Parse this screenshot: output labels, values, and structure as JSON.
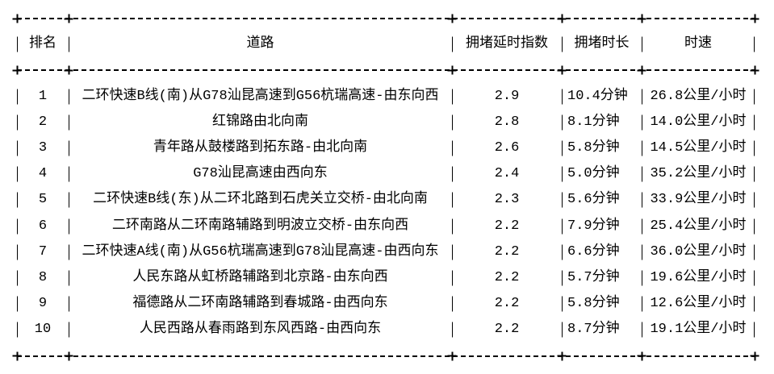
{
  "chart_data": {
    "type": "table",
    "title": "",
    "columns": [
      "排名",
      "道路",
      "拥堵延时指数",
      "拥堵时长",
      "时速"
    ],
    "rows": [
      [
        "1",
        "二环快速B线(南)从G78汕昆高速到G56杭瑞高速-由东向西",
        "2.9",
        "10.4分钟",
        "26.8公里/小时"
      ],
      [
        "2",
        "红锦路由北向南",
        "2.8",
        "8.1分钟",
        "14.0公里/小时"
      ],
      [
        "3",
        "青年路从鼓楼路到拓东路-由北向南",
        "2.6",
        "5.8分钟",
        "14.5公里/小时"
      ],
      [
        "4",
        "G78汕昆高速由西向东",
        "2.4",
        "5.0分钟",
        "35.2公里/小时"
      ],
      [
        "5",
        "二环快速B线(东)从二环北路到石虎关立交桥-由北向南",
        "2.3",
        "5.6分钟",
        "33.9公里/小时"
      ],
      [
        "6",
        "二环南路从二环南路辅路到明波立交桥-由东向西",
        "2.2",
        "7.9分钟",
        "25.4公里/小时"
      ],
      [
        "7",
        "二环快速A线(南)从G56杭瑞高速到G78汕昆高速-由西向东",
        "2.2",
        "6.6分钟",
        "36.0公里/小时"
      ],
      [
        "8",
        "人民东路从虹桥路辅路到北京路-由东向西",
        "2.2",
        "5.7分钟",
        "19.6公里/小时"
      ],
      [
        "9",
        "福德路从二环南路辅路到春城路-由西向东",
        "2.2",
        "5.8分钟",
        "12.6公里/小时"
      ],
      [
        "10",
        "人民西路从春雨路到东风西路-由西向东",
        "2.2",
        "8.7分钟",
        "19.1公里/小时"
      ]
    ],
    "layout": {
      "border_style": "ascii-dashed",
      "column_alignments": [
        "center",
        "center",
        "center",
        "left",
        "center"
      ],
      "grid": true,
      "text_color": "#000000",
      "background_color": "#ffffff"
    }
  }
}
